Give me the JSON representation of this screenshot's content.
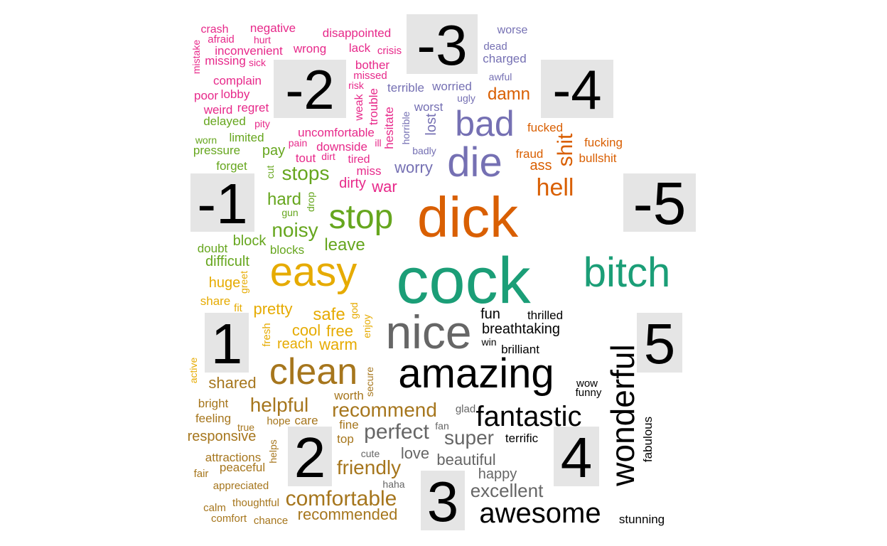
{
  "chart_data": {
    "type": "comparison_word_cloud",
    "title": "",
    "groups": [
      {
        "label": "-5",
        "color": "#1B9E77",
        "words": [
          "cock",
          "bitch"
        ]
      },
      {
        "label": "-4",
        "color": "#D95F02",
        "words": [
          "dick",
          "hell",
          "shit",
          "damn",
          "ass",
          "fucked",
          "fucking",
          "bullshit",
          "fraud"
        ]
      },
      {
        "label": "-3",
        "color": "#7570B3",
        "words": [
          "bad",
          "die",
          "worry",
          "worst",
          "lost",
          "terrible",
          "worse",
          "dead",
          "charged",
          "awful",
          "ugly",
          "worried",
          "horrible",
          "badly"
        ]
      },
      {
        "label": "-2",
        "color": "#E7298A",
        "words": [
          "disappointed",
          "lack",
          "crisis",
          "bother",
          "missed",
          "risk",
          "weak",
          "trouble",
          "hesitate",
          "uncomfortable",
          "downside",
          "ill",
          "tired",
          "miss",
          "dirty",
          "war",
          "pain",
          "tout",
          "dirt",
          "negative",
          "crash",
          "afraid",
          "hurt",
          "mistake",
          "missing",
          "sick",
          "inconvenient",
          "wrong",
          "complain",
          "poor",
          "lobby",
          "weird",
          "regret",
          "pity"
        ]
      },
      {
        "label": "-1",
        "color": "#66A61E",
        "words": [
          "stop",
          "stops",
          "noisy",
          "leave",
          "hard",
          "pay",
          "limited",
          "delayed",
          "worn",
          "pressure",
          "forget",
          "cut",
          "drop",
          "gun",
          "block",
          "blocks",
          "doubt",
          "difficult"
        ]
      },
      {
        "label": "1",
        "color": "#E6AB02",
        "words": [
          "easy",
          "pretty",
          "safe",
          "huge",
          "share",
          "fit",
          "greet",
          "cool",
          "free",
          "reach",
          "warm",
          "fresh",
          "god",
          "enjoy",
          "active"
        ]
      },
      {
        "label": "2",
        "color": "#A6761D",
        "words": [
          "clean",
          "helpful",
          "recommend",
          "shared",
          "bright",
          "feeling",
          "responsive",
          "true",
          "hope",
          "care",
          "fine",
          "top",
          "worth",
          "secure",
          "friendly",
          "comfortable",
          "recommended",
          "attractions",
          "peaceful",
          "fair",
          "helps",
          "appreciated",
          "calm",
          "thoughtful",
          "comfort",
          "chance"
        ]
      },
      {
        "label": "3",
        "color": "#666666",
        "words": [
          "nice",
          "perfect",
          "super",
          "love",
          "beautiful",
          "happy",
          "excellent",
          "glad",
          "fan",
          "cute",
          "haha"
        ]
      },
      {
        "label": "4",
        "color": "#000000",
        "words": [
          "amazing",
          "fantastic",
          "awesome",
          "terrific",
          "fun",
          "breathtaking",
          "win"
        ]
      },
      {
        "label": "5",
        "color": "#000000",
        "words": [
          "wonderful",
          "thrilled",
          "brilliant",
          "wow",
          "funny",
          "fabulous",
          "stunning"
        ]
      }
    ]
  }
}
